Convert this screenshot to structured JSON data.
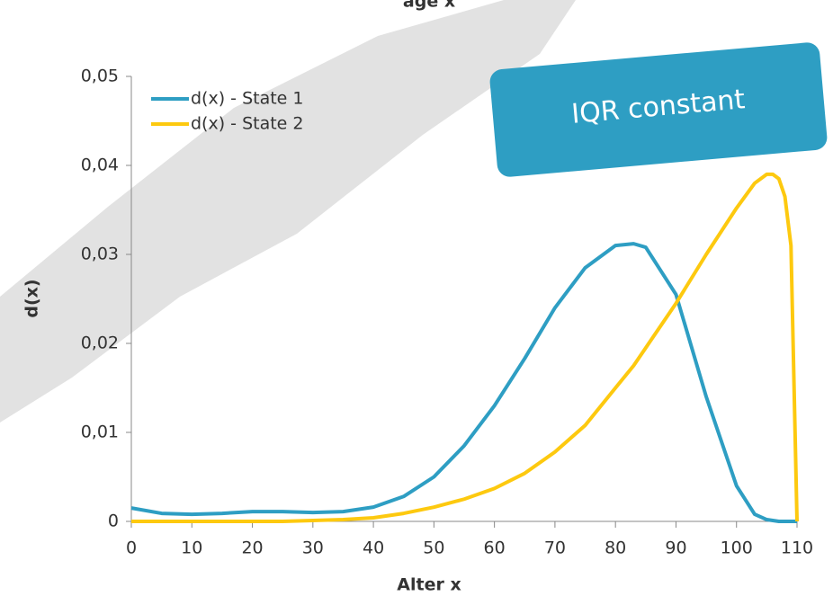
{
  "chart_data": {
    "type": "line",
    "title": "age x",
    "x_label": "Alter x",
    "y_label": "d(x)",
    "annotation": "IQR constant",
    "x": [
      0,
      5,
      10,
      15,
      20,
      25,
      30,
      35,
      40,
      45,
      50,
      55,
      60,
      65,
      70,
      75,
      80,
      83,
      85,
      90,
      95,
      100,
      103,
      105,
      106,
      107,
      108,
      109,
      110
    ],
    "series": [
      {
        "name": "d(x) - State 1",
        "color": "#2e9ec3",
        "values": [
          0.0015,
          0.0009,
          0.0008,
          0.0009,
          0.0011,
          0.0011,
          0.001,
          0.0011,
          0.0016,
          0.0028,
          0.005,
          0.0085,
          0.013,
          0.0183,
          0.024,
          0.0285,
          0.031,
          0.0312,
          0.0308,
          0.0255,
          0.014,
          0.004,
          0.0008,
          0.0002,
          0.0001,
          0,
          0,
          0,
          0
        ]
      },
      {
        "name": "d(x) - State 2",
        "color": "#fdc90f",
        "values": [
          0,
          0,
          0,
          0,
          0,
          0,
          0.0001,
          0.0002,
          0.0004,
          0.0009,
          0.0016,
          0.0025,
          0.0037,
          0.0054,
          0.0078,
          0.0108,
          0.015,
          0.0175,
          0.0195,
          0.0245,
          0.03,
          0.0352,
          0.038,
          0.039,
          0.039,
          0.0385,
          0.0365,
          0.031,
          0
        ]
      }
    ],
    "xlim": [
      0,
      110
    ],
    "xticks": [
      0,
      10,
      20,
      30,
      40,
      50,
      60,
      70,
      80,
      90,
      100,
      110
    ],
    "ylim": [
      0,
      0.05
    ],
    "yticks": [
      0,
      {
        "value": 0.01,
        "label": "0,01"
      },
      {
        "value": 0.02,
        "label": "0,02"
      },
      {
        "value": 0.03,
        "label": "0,03"
      },
      {
        "value": 0.04,
        "label": "0,04"
      },
      {
        "value": 0.05,
        "label": "0,05"
      }
    ],
    "legend": "upper left",
    "grid": false
  }
}
